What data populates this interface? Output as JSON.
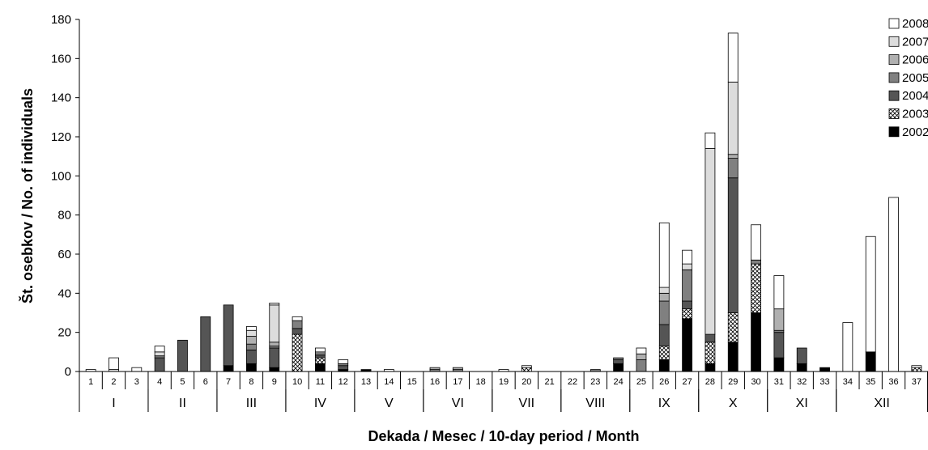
{
  "chart_data": {
    "type": "bar",
    "stacked": true,
    "ylabel": "Št. osebkov / No. of  individuals",
    "xlabel": "Dekada / Mesec / 10-day period / Month",
    "ylim": [
      0,
      180
    ],
    "yticks": [
      0,
      20,
      40,
      60,
      80,
      100,
      120,
      140,
      160,
      180
    ],
    "legend_position": "top-right",
    "categories": [
      "1",
      "2",
      "3",
      "4",
      "5",
      "6",
      "7",
      "8",
      "9",
      "10",
      "11",
      "12",
      "13",
      "14",
      "15",
      "16",
      "17",
      "18",
      "19",
      "20",
      "21",
      "22",
      "23",
      "24",
      "25",
      "26",
      "27",
      "28",
      "29",
      "30",
      "31",
      "32",
      "33",
      "34",
      "35",
      "36",
      "37"
    ],
    "months": [
      {
        "label": "I",
        "from": 1,
        "to": 3
      },
      {
        "label": "II",
        "from": 4,
        "to": 6
      },
      {
        "label": "III",
        "from": 7,
        "to": 9
      },
      {
        "label": "IV",
        "from": 10,
        "to": 12
      },
      {
        "label": "V",
        "from": 13,
        "to": 15
      },
      {
        "label": "VI",
        "from": 16,
        "to": 18
      },
      {
        "label": "VII",
        "from": 19,
        "to": 21
      },
      {
        "label": "VIII",
        "from": 22,
        "to": 24
      },
      {
        "label": "IX",
        "from": 25,
        "to": 27
      },
      {
        "label": "X",
        "from": 28,
        "to": 30
      },
      {
        "label": "XI",
        "from": 31,
        "to": 33
      },
      {
        "label": "XII",
        "from": 34,
        "to": 37
      }
    ],
    "series": [
      {
        "name": "2002",
        "fill": "black",
        "values": [
          0,
          0,
          0,
          0,
          0,
          0,
          3,
          4,
          2,
          0,
          4,
          1,
          1,
          0,
          0,
          0,
          0,
          0,
          0,
          0,
          0,
          0,
          0,
          4,
          0,
          6,
          27,
          4,
          15,
          30,
          7,
          4,
          2,
          0,
          10,
          0,
          0
        ]
      },
      {
        "name": "2003",
        "fill": "cross",
        "values": [
          0,
          0,
          0,
          0,
          0,
          0,
          0,
          0,
          0,
          19,
          3,
          0,
          0,
          0,
          0,
          0,
          0,
          0,
          0,
          2,
          0,
          0,
          0,
          0,
          0,
          7,
          5,
          11,
          15,
          25,
          0,
          0,
          0,
          0,
          0,
          0,
          2
        ]
      },
      {
        "name": "2004",
        "fill": "#555555",
        "values": [
          0,
          0,
          0,
          7,
          16,
          28,
          31,
          7,
          10,
          3,
          1,
          2,
          0,
          0,
          0,
          0,
          0,
          0,
          0,
          0,
          0,
          0,
          0,
          2,
          0,
          11,
          4,
          4,
          69,
          0,
          13,
          8,
          0,
          0,
          0,
          0,
          0
        ]
      },
      {
        "name": "2005",
        "fill": "#808080",
        "values": [
          0,
          0,
          0,
          1,
          0,
          0,
          0,
          3,
          1,
          4,
          1,
          1,
          0,
          0,
          0,
          1,
          1,
          0,
          0,
          0,
          0,
          0,
          1,
          1,
          6,
          12,
          16,
          0,
          10,
          2,
          1,
          0,
          0,
          0,
          0,
          0,
          0
        ]
      },
      {
        "name": "2006",
        "fill": "#b0b0b0",
        "values": [
          0,
          0,
          0,
          0,
          0,
          0,
          0,
          4,
          2,
          0,
          1,
          0,
          0,
          0,
          0,
          1,
          1,
          0,
          0,
          0,
          0,
          0,
          0,
          0,
          3,
          4,
          0,
          0,
          2,
          0,
          11,
          0,
          0,
          0,
          0,
          0,
          0
        ]
      },
      {
        "name": "2007",
        "fill": "#dcdcdc",
        "values": [
          0,
          1,
          0,
          2,
          0,
          0,
          0,
          3,
          19,
          0,
          0,
          0,
          0,
          0,
          0,
          0,
          0,
          0,
          0,
          0,
          0,
          0,
          0,
          0,
          0,
          3,
          3,
          95,
          37,
          0,
          0,
          0,
          0,
          0,
          0,
          0,
          0
        ]
      },
      {
        "name": "2008",
        "fill": "#ffffff",
        "values": [
          1,
          6,
          2,
          3,
          0,
          0,
          0,
          2,
          1,
          2,
          2,
          2,
          0,
          1,
          0,
          0,
          0,
          0,
          1,
          1,
          0,
          0,
          0,
          0,
          3,
          33,
          7,
          8,
          25,
          18,
          17,
          0,
          0,
          25,
          59,
          89,
          1
        ]
      }
    ]
  }
}
